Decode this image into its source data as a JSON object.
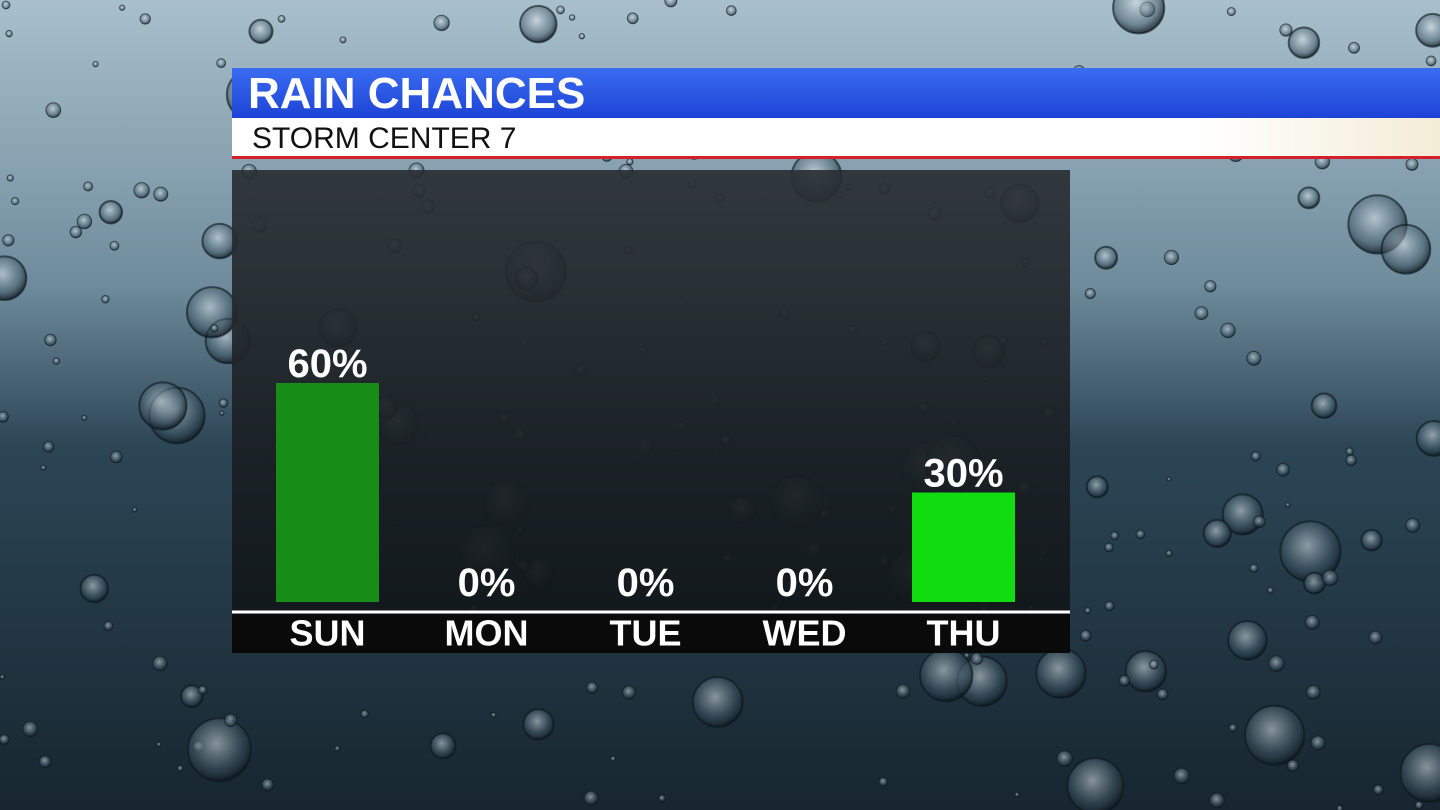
{
  "chart_data": {
    "type": "bar",
    "title": "RAIN CHANCES",
    "subtitle": "STORM CENTER 7",
    "categories": [
      "SUN",
      "MON",
      "TUE",
      "WED",
      "THU"
    ],
    "values": [
      60,
      0,
      0,
      0,
      30
    ],
    "value_labels": [
      "60%",
      "0%",
      "0%",
      "0%",
      "30%"
    ],
    "colors": [
      "#178c17",
      "#178c17",
      "#178c17",
      "#178c17",
      "#10dc10"
    ]
  }
}
